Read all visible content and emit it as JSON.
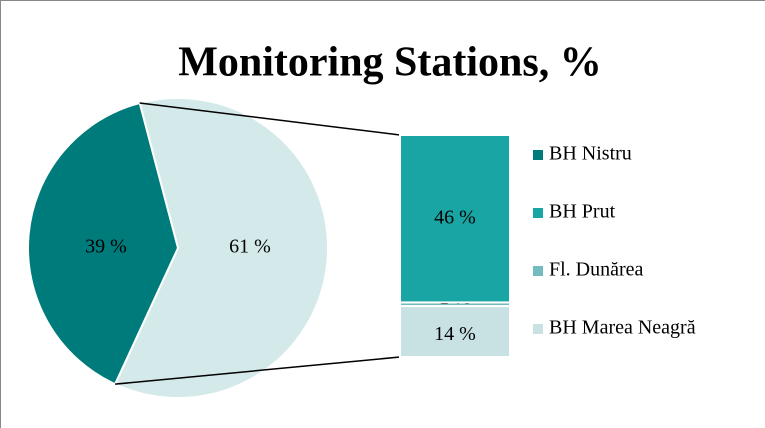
{
  "chart_data": {
    "type": "pie-of-bar",
    "title": "Monitoring Stations, %",
    "categories": [
      "BH Nistru",
      "BH Prut",
      "Fl. Dunărea",
      "BH Marea Neagră"
    ],
    "values": [
      39,
      46,
      1,
      14
    ],
    "value_labels": [
      "39 %",
      "46 %",
      "1 %",
      "14 %"
    ],
    "colors": [
      "#007b7b",
      "#1aa5a5",
      "#72bcc0",
      "#c8e2e3"
    ],
    "other_value": 61,
    "other_label": "61 %",
    "other_color": "#d4e9e9"
  }
}
